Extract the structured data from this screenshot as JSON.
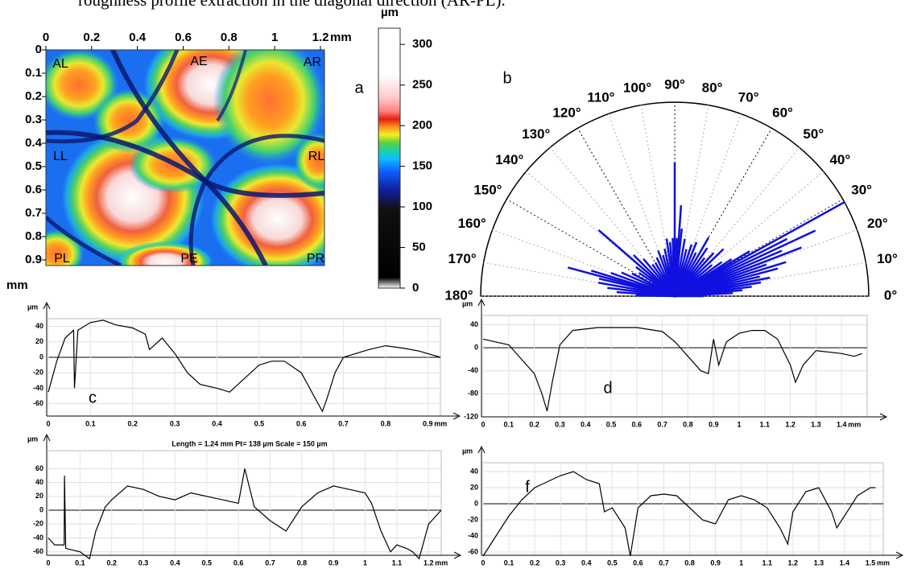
{
  "caption": "roughness profile extraction in the diagonal direction (AR-PL).",
  "map": {
    "label": "a",
    "unit": "mm",
    "xlim": [
      0,
      1.2
    ],
    "ylim": [
      0,
      0.9
    ],
    "xticks": [
      0,
      0.2,
      0.4,
      0.6,
      0.8,
      1,
      1.2
    ],
    "yticks": [
      0,
      0.1,
      0.2,
      0.3,
      0.4,
      0.5,
      0.6,
      0.7,
      0.8,
      0.9
    ],
    "regions": [
      "AL",
      "AE",
      "AR",
      "LL",
      "RL",
      "PL",
      "PE",
      "PR"
    ],
    "colorbar": {
      "unit": "µm",
      "lim": [
        0,
        320
      ],
      "ticks": [
        0,
        50,
        100,
        150,
        200,
        250,
        300
      ]
    }
  },
  "rose": {
    "label": "b",
    "color": "#1010e0",
    "angle_labels": [
      {
        "value": 0,
        "label": "0°"
      },
      {
        "value": 10,
        "label": "10°"
      },
      {
        "value": 20,
        "label": "20°"
      },
      {
        "value": 30,
        "label": "30°"
      },
      {
        "value": 40,
        "label": "40°"
      },
      {
        "value": 50,
        "label": "50°"
      },
      {
        "value": 60,
        "label": "60°"
      },
      {
        "value": 70,
        "label": "70°"
      },
      {
        "value": 80,
        "label": "80°"
      },
      {
        "value": 90,
        "label": "90°"
      },
      {
        "value": 100,
        "label": "100°"
      },
      {
        "value": 110,
        "label": "110°"
      },
      {
        "value": 120,
        "label": "120°"
      },
      {
        "value": 130,
        "label": "130°"
      },
      {
        "value": 140,
        "label": "140°"
      },
      {
        "value": 150,
        "label": "150°"
      },
      {
        "value": 160,
        "label": "160°"
      },
      {
        "value": 170,
        "label": "170°"
      },
      {
        "value": 180,
        "label": "180°"
      }
    ],
    "rays": [
      [
        0,
        0.15
      ],
      [
        3,
        0.3
      ],
      [
        5,
        0.35
      ],
      [
        7,
        0.4
      ],
      [
        9,
        0.45
      ],
      [
        11,
        0.5
      ],
      [
        13,
        0.45
      ],
      [
        15,
        0.55
      ],
      [
        17,
        0.6
      ],
      [
        19,
        0.5
      ],
      [
        21,
        0.7
      ],
      [
        23,
        0.6
      ],
      [
        25,
        0.8
      ],
      [
        27,
        0.65
      ],
      [
        29,
        1.0
      ],
      [
        31,
        0.45
      ],
      [
        33,
        0.35
      ],
      [
        36,
        0.3
      ],
      [
        40,
        0.25
      ],
      [
        44,
        0.35
      ],
      [
        48,
        0.3
      ],
      [
        52,
        0.25
      ],
      [
        56,
        0.3
      ],
      [
        60,
        0.35
      ],
      [
        64,
        0.25
      ],
      [
        68,
        0.3
      ],
      [
        72,
        0.28
      ],
      [
        76,
        0.25
      ],
      [
        80,
        0.3
      ],
      [
        84,
        0.35
      ],
      [
        86,
        0.47
      ],
      [
        88,
        0.3
      ],
      [
        90,
        0.69
      ],
      [
        92,
        0.3
      ],
      [
        95,
        0.28
      ],
      [
        98,
        0.3
      ],
      [
        102,
        0.25
      ],
      [
        106,
        0.22
      ],
      [
        110,
        0.25
      ],
      [
        115,
        0.22
      ],
      [
        120,
        0.2
      ],
      [
        125,
        0.2
      ],
      [
        130,
        0.25
      ],
      [
        135,
        0.3
      ],
      [
        139,
        0.52
      ],
      [
        143,
        0.25
      ],
      [
        147,
        0.22
      ],
      [
        152,
        0.25
      ],
      [
        156,
        0.3
      ],
      [
        160,
        0.35
      ],
      [
        163,
        0.45
      ],
      [
        165,
        0.57
      ],
      [
        167,
        0.4
      ],
      [
        170,
        0.4
      ],
      [
        173,
        0.35
      ],
      [
        176,
        0.3
      ],
      [
        179,
        0.2
      ]
    ]
  },
  "profiles": [
    {
      "label": "c",
      "y_unit": "µm",
      "x_unit": "mm",
      "xlim": [
        0,
        0.93
      ],
      "ylim": [
        -76,
        50
      ],
      "xticks": [
        0,
        0.1,
        0.2,
        0.3,
        0.4,
        0.5,
        0.6,
        0.7,
        0.8,
        0.9
      ],
      "yticks": [
        -60,
        -40,
        -20,
        0,
        20,
        40
      ],
      "x": [
        0,
        0.02,
        0.04,
        0.06,
        0.062,
        0.07,
        0.1,
        0.13,
        0.16,
        0.2,
        0.23,
        0.24,
        0.27,
        0.3,
        0.33,
        0.36,
        0.4,
        0.43,
        0.46,
        0.5,
        0.53,
        0.56,
        0.6,
        0.62,
        0.64,
        0.65,
        0.66,
        0.68,
        0.7,
        0.73,
        0.76,
        0.8,
        0.84,
        0.88,
        0.93
      ],
      "y": [
        -45,
        -5,
        25,
        35,
        -40,
        35,
        45,
        48,
        42,
        38,
        30,
        10,
        25,
        5,
        -20,
        -35,
        -40,
        -45,
        -30,
        -10,
        -5,
        -5,
        -20,
        -40,
        -60,
        -70,
        -55,
        -20,
        0,
        5,
        10,
        15,
        12,
        8,
        0
      ]
    },
    {
      "label": "d",
      "y_unit": "µm",
      "x_unit": "mm",
      "xlim": [
        0,
        1.5
      ],
      "ylim": [
        -120,
        56
      ],
      "xticks": [
        0,
        0.1,
        0.2,
        0.3,
        0.4,
        0.5,
        0.6,
        0.7,
        0.8,
        0.9,
        1,
        1.1,
        1.2,
        1.3,
        1.4
      ],
      "yticks": [
        -120,
        -80,
        -40,
        0,
        40
      ],
      "x": [
        0,
        0.05,
        0.1,
        0.15,
        0.2,
        0.23,
        0.25,
        0.27,
        0.3,
        0.35,
        0.45,
        0.55,
        0.6,
        0.7,
        0.75,
        0.8,
        0.85,
        0.88,
        0.9,
        0.92,
        0.95,
        1.0,
        1.05,
        1.1,
        1.15,
        1.2,
        1.22,
        1.25,
        1.3,
        1.4,
        1.45,
        1.48
      ],
      "y": [
        15,
        10,
        5,
        -20,
        -45,
        -80,
        -110,
        -60,
        5,
        30,
        35,
        35,
        35,
        28,
        10,
        -15,
        -40,
        -45,
        15,
        -30,
        10,
        25,
        30,
        30,
        15,
        -30,
        -60,
        -30,
        -5,
        -10,
        -15,
        -10
      ]
    },
    {
      "title": "Length = 1.24 mm  Pt= 138 µm  Scale = 150 µm",
      "y_unit": "µm",
      "x_unit": "mm",
      "xlim": [
        0,
        1.24
      ],
      "ylim": [
        -65,
        86
      ],
      "xticks": [
        0,
        0.1,
        0.2,
        0.3,
        0.4,
        0.5,
        0.6,
        0.7,
        0.8,
        0.9,
        1,
        1.1,
        1.2
      ],
      "yticks": [
        -60,
        -40,
        -20,
        0,
        20,
        40,
        60
      ],
      "x": [
        0,
        0.02,
        0.05,
        0.051,
        0.055,
        0.1,
        0.13,
        0.15,
        0.18,
        0.2,
        0.25,
        0.3,
        0.35,
        0.4,
        0.45,
        0.5,
        0.55,
        0.6,
        0.62,
        0.65,
        0.7,
        0.75,
        0.8,
        0.85,
        0.9,
        0.95,
        1.0,
        1.02,
        1.05,
        1.08,
        1.1,
        1.13,
        1.15,
        1.17,
        1.2,
        1.22,
        1.24
      ],
      "y": [
        -40,
        -50,
        -50,
        50,
        -55,
        -60,
        -70,
        -30,
        5,
        15,
        35,
        30,
        20,
        15,
        25,
        20,
        15,
        10,
        60,
        5,
        -15,
        -30,
        5,
        25,
        35,
        30,
        25,
        10,
        -30,
        -60,
        -50,
        -55,
        -60,
        -70,
        -20,
        -10,
        0
      ]
    },
    {
      "label": "f",
      "y_unit": "µm",
      "x_unit": "mm",
      "xlim": [
        0,
        1.55
      ],
      "ylim": [
        -64,
        51
      ],
      "xticks": [
        0,
        0.1,
        0.2,
        0.3,
        0.4,
        0.5,
        0.6,
        0.7,
        0.8,
        0.9,
        1,
        1.1,
        1.2,
        1.3,
        1.4,
        1.5
      ],
      "yticks": [
        -60,
        -40,
        -20,
        0,
        20,
        40
      ],
      "x": [
        0,
        0.05,
        0.1,
        0.15,
        0.2,
        0.3,
        0.35,
        0.4,
        0.45,
        0.47,
        0.5,
        0.55,
        0.57,
        0.6,
        0.65,
        0.7,
        0.75,
        0.8,
        0.85,
        0.9,
        0.95,
        1.0,
        1.05,
        1.1,
        1.15,
        1.18,
        1.2,
        1.25,
        1.3,
        1.35,
        1.37,
        1.4,
        1.45,
        1.5,
        1.52
      ],
      "y": [
        -65,
        -40,
        -15,
        5,
        20,
        35,
        40,
        30,
        25,
        -10,
        -5,
        -30,
        -65,
        -5,
        10,
        12,
        10,
        -5,
        -20,
        -25,
        5,
        10,
        5,
        -5,
        -30,
        -50,
        -10,
        15,
        20,
        -10,
        -30,
        -15,
        10,
        20,
        20
      ]
    }
  ]
}
